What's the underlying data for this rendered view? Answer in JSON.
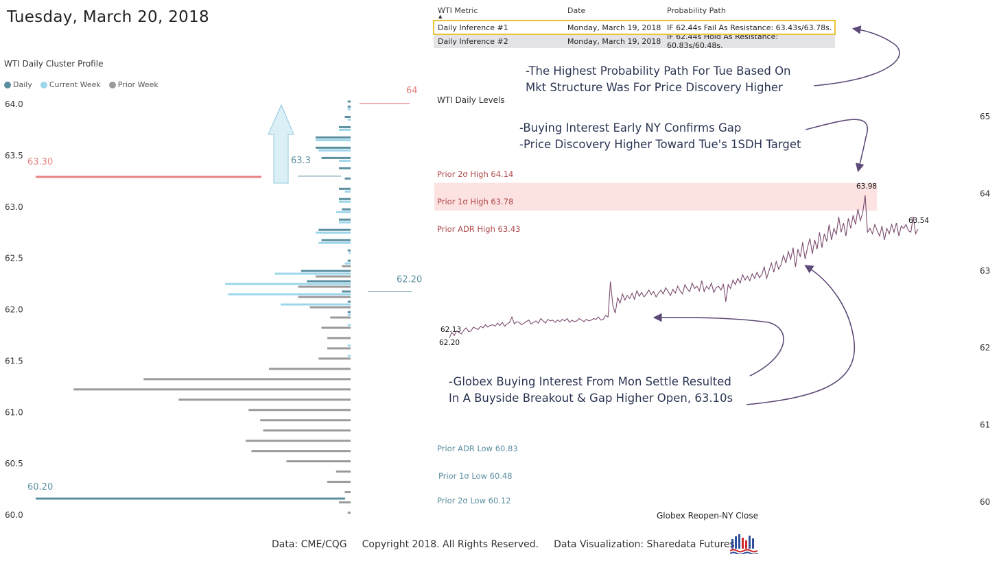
{
  "header": {
    "date": "Tuesday, March 20, 2018"
  },
  "profile": {
    "title": "WTI Daily Cluster Profile",
    "legend": [
      {
        "name": "Daily",
        "color": "#5b8fa0"
      },
      {
        "name": "Current Week",
        "color": "#9dd6ea"
      },
      {
        "name": "Prior Week",
        "color": "#9a9a9a"
      }
    ],
    "ref_levels": [
      {
        "label": "64",
        "value": 64.0,
        "color": "#e88080"
      },
      {
        "label": "63.30",
        "value": 63.3,
        "color": "#e88080"
      },
      {
        "label": "63.3",
        "value": 63.3,
        "color": "#5b8fa0"
      },
      {
        "label": "62.20",
        "value": 62.2,
        "color": "#5b8fa0"
      },
      {
        "label": "60.20",
        "value": 60.2,
        "color": "#5b8fa0"
      }
    ]
  },
  "metric_table": {
    "columns": [
      "WTI Metric",
      "Date",
      "Probability Path"
    ],
    "rows": [
      [
        "Daily Inference #1",
        "Monday, March 19, 2018",
        "IF 62.44s Fail As Resistance: 63.43s/63.78s."
      ],
      [
        "Daily Inference #2",
        "Monday, March 19, 2018",
        "IF 62.44s Hold As Resistance: 60.83s/60.48s."
      ]
    ]
  },
  "levels": {
    "title": "WTI Daily Levels",
    "xlabel": "Globex Reopen-NY Close",
    "bands": [
      {
        "label": "Prior 2σ High 64.14",
        "value": 64.14,
        "color": "#b04848"
      },
      {
        "label": "Prior 1σ High 63.78",
        "value": 63.78,
        "color": "#b04848"
      },
      {
        "label": "Prior ADR High 63.43",
        "value": 63.43,
        "color": "#b04848"
      },
      {
        "label": "Prior ADR Low 60.83",
        "value": 60.83,
        "color": "#5b8fa0"
      },
      {
        "label": "Prior 1σ Low 60.48",
        "value": 60.48,
        "color": "#5b8fa0"
      },
      {
        "label": "Prior 2σ Low 60.12",
        "value": 60.12,
        "color": "#5b8fa0"
      }
    ],
    "price_labels": [
      "62.13",
      "62.20",
      "63.98",
      "63.54"
    ],
    "band_color": "#fde2e2",
    "line_color": "#7a4a6e"
  },
  "annotations": {
    "note1": [
      "-The Highest Probability Path For Tue Based On",
      "Mkt Structure Was For Price Discovery Higher"
    ],
    "note2": [
      "-Buying Interest Early NY Confirms Gap",
      "-Price Discovery Higher Toward Tue's 1SDH Target"
    ],
    "note3": [
      "-Globex Buying Interest From Mon Settle Resulted",
      "In A Buyside Breakout & Gap Higher Open, 63.10s"
    ],
    "arrow_color": "#5e4a78"
  },
  "footer": {
    "items": [
      "Data: CME/CQG",
      "Copyright 2018. All Rights Reserved.",
      "Data Visualization: Sharedata Futures"
    ]
  },
  "chart_data": [
    {
      "type": "bar",
      "orientation": "horizontal",
      "title": "WTI Daily Cluster Profile",
      "ylim": [
        60.0,
        64.0
      ],
      "yticks": [
        "60.0",
        "60.5",
        "61.0",
        "61.5",
        "62.0",
        "62.5",
        "63.0",
        "63.5",
        "64.0"
      ],
      "xlim": [
        0,
        100
      ],
      "series": [
        {
          "name": "Daily",
          "color": "#5b8fa0",
          "points": [
            [
              64.0,
              1
            ],
            [
              63.95,
              1
            ],
            [
              63.85,
              2
            ],
            [
              63.75,
              4
            ],
            [
              63.65,
              12
            ],
            [
              63.55,
              12
            ],
            [
              63.45,
              10
            ],
            [
              63.35,
              4
            ],
            [
              63.25,
              2
            ],
            [
              63.15,
              4
            ],
            [
              63.05,
              4
            ],
            [
              62.95,
              3
            ],
            [
              62.85,
              4
            ],
            [
              62.75,
              11
            ],
            [
              62.65,
              10
            ],
            [
              62.55,
              1
            ],
            [
              62.45,
              1
            ],
            [
              62.35,
              17
            ],
            [
              62.25,
              15
            ],
            [
              62.15,
              3
            ],
            [
              62.05,
              1
            ],
            [
              61.95,
              1
            ]
          ]
        },
        {
          "name": "Current Week",
          "color": "#9dd6ea",
          "points": [
            [
              63.95,
              1
            ],
            [
              63.85,
              1
            ],
            [
              63.75,
              4
            ],
            [
              63.65,
              12
            ],
            [
              63.55,
              11
            ],
            [
              63.45,
              4
            ],
            [
              63.15,
              2
            ],
            [
              63.05,
              4
            ],
            [
              62.95,
              5
            ],
            [
              62.85,
              4
            ],
            [
              62.75,
              12
            ],
            [
              62.65,
              11
            ],
            [
              62.55,
              0.5
            ],
            [
              62.45,
              2
            ],
            [
              62.35,
              26
            ],
            [
              62.25,
              43
            ],
            [
              62.15,
              42
            ],
            [
              62.05,
              24
            ],
            [
              61.95,
              1
            ],
            [
              61.85,
              1
            ],
            [
              61.65,
              1
            ],
            [
              61.55,
              1
            ]
          ]
        },
        {
          "name": "Prior Week",
          "color": "#9a9a9a",
          "points": [
            [
              62.45,
              3
            ],
            [
              62.35,
              12
            ],
            [
              62.25,
              18
            ],
            [
              62.15,
              18
            ],
            [
              62.05,
              14
            ],
            [
              61.95,
              7
            ],
            [
              61.85,
              10
            ],
            [
              61.75,
              8
            ],
            [
              61.65,
              8
            ],
            [
              61.55,
              11
            ],
            [
              61.45,
              28
            ],
            [
              61.35,
              71
            ],
            [
              61.25,
              95
            ],
            [
              61.15,
              59
            ],
            [
              61.05,
              35
            ],
            [
              60.95,
              31
            ],
            [
              60.85,
              30
            ],
            [
              60.75,
              36
            ],
            [
              60.65,
              34
            ],
            [
              60.55,
              22
            ],
            [
              60.45,
              5
            ],
            [
              60.35,
              8
            ],
            [
              60.25,
              2
            ],
            [
              60.15,
              4
            ],
            [
              60.05,
              1
            ]
          ]
        }
      ]
    },
    {
      "type": "line",
      "title": "WTI Daily Levels",
      "xlabel": "Globex Reopen-NY Close",
      "ylim": [
        60.0,
        65.0
      ],
      "yticks": [
        "60",
        "61",
        "62",
        "63",
        "64",
        "65"
      ],
      "series": [
        {
          "name": "",
          "values": [
            62.13,
            62.2,
            62.16,
            62.22,
            62.2,
            62.18,
            62.23,
            62.26,
            62.21,
            62.22,
            62.27,
            62.25,
            62.24,
            62.28,
            62.26,
            62.3,
            62.27,
            62.29,
            62.3,
            62.28,
            62.32,
            62.29,
            62.33,
            62.28,
            62.31,
            62.33,
            62.4,
            62.31,
            62.34,
            62.33,
            62.3,
            62.32,
            62.34,
            62.36,
            62.31,
            62.33,
            62.35,
            62.32,
            62.38,
            62.35,
            62.32,
            62.37,
            62.35,
            62.36,
            62.33,
            62.36,
            62.34,
            62.37,
            62.35,
            62.38,
            62.33,
            62.36,
            62.34,
            62.35,
            62.38,
            62.36,
            62.34,
            62.37,
            62.35,
            62.36,
            62.38,
            62.37,
            62.4,
            62.36,
            62.37,
            62.42,
            62.4,
            62.86,
            62.55,
            62.45,
            62.65,
            62.58,
            62.7,
            62.62,
            62.68,
            62.64,
            62.71,
            62.63,
            62.74,
            62.67,
            62.72,
            62.66,
            62.7,
            62.75,
            62.69,
            62.73,
            62.66,
            62.71,
            62.75,
            62.7,
            62.78,
            62.73,
            62.68,
            62.76,
            62.71,
            62.8,
            62.74,
            62.7,
            62.82,
            62.76,
            62.73,
            62.84,
            62.77,
            62.8,
            62.74,
            62.87,
            62.73,
            62.8,
            62.76,
            62.84,
            62.72,
            62.78,
            62.8,
            62.75,
            62.83,
            62.6,
            62.82,
            62.77,
            62.88,
            62.82,
            62.9,
            62.84,
            62.95,
            62.88,
            62.93,
            62.87,
            62.96,
            62.9,
            62.98,
            62.91,
            62.95,
            63.05,
            62.9,
            63.0,
            63.1,
            62.98,
            63.12,
            63.02,
            63.08,
            63.2,
            63.1,
            63.25,
            63.15,
            63.3,
            63.05,
            63.28,
            63.18,
            63.37,
            63.15,
            63.3,
            63.42,
            63.22,
            63.4,
            63.28,
            63.5,
            63.3,
            63.48,
            63.38,
            63.6,
            63.4,
            63.55,
            63.47,
            63.7,
            63.5,
            63.62,
            63.45,
            63.68,
            63.55,
            63.72,
            63.6,
            63.8,
            63.65,
            63.75,
            63.98,
            63.5,
            63.55,
            63.48,
            63.6,
            63.52,
            63.45,
            63.58,
            63.4,
            63.55,
            63.48,
            63.6,
            63.5,
            63.62,
            63.45,
            63.58,
            63.55,
            63.6,
            63.52,
            63.5,
            63.7,
            63.48,
            63.54
          ]
        }
      ],
      "bands": [
        [
          63.78,
          64.14
        ]
      ]
    }
  ]
}
